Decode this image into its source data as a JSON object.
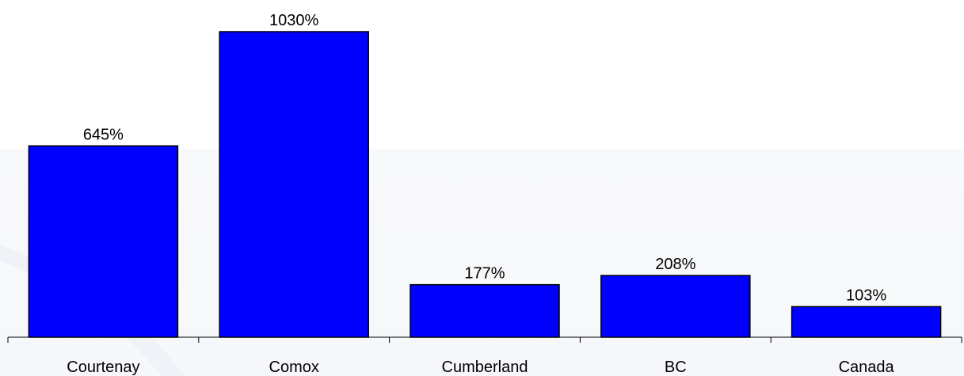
{
  "chart_data": {
    "type": "bar",
    "categories": [
      "Courtenay",
      "Comox",
      "Cumberland",
      "BC",
      "Canada"
    ],
    "values": [
      645,
      1030,
      177,
      208,
      103
    ],
    "value_labels": [
      "645%",
      "1030%",
      "177%",
      "208%",
      "103%"
    ],
    "unit": "%",
    "title": "",
    "xlabel": "",
    "ylabel": "",
    "ylim": [
      0,
      1030
    ],
    "grid": false,
    "legend": "none",
    "bar_color": "#0000ff",
    "bar_edge_color": "#000000"
  }
}
